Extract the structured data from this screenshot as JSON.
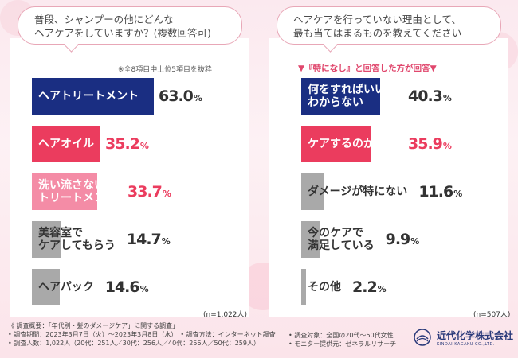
{
  "left": {
    "question": [
      "普段、シャンプーの他にどんな",
      "ヘアケアをしていますか？(複数回答可)"
    ],
    "note": "※全8項目中上位5項目を抜粋",
    "n_label": "(n=1,022人)"
  },
  "right": {
    "question": [
      "ヘアケアを行っていない理由として、",
      "最も当てはまるものを教えてください"
    ],
    "note": "▼『特になし』と回答した方が回答▼",
    "n_label": "(n=507人)"
  },
  "colors": {
    "navy": "#1a2e82",
    "red": "#eb3c5e",
    "pink": "#f48ca6",
    "gray": "#a9a9a9"
  },
  "chart_data": [
    {
      "type": "bar",
      "title": "普段、シャンプーの他にどんなヘアケアをしていますか？(複数回答可)",
      "categories": [
        "ヘアトリートメント",
        "ヘアオイル",
        "洗い流さないトリートメント",
        "美容室でケアしてもらう",
        "ヘアパック"
      ],
      "label_lines": [
        [
          "ヘアトリートメント"
        ],
        [
          "ヘアオイル"
        ],
        [
          "洗い流さない",
          "トリートメント"
        ],
        [
          "美容室で",
          "ケアしてもらう"
        ],
        [
          "ヘアパック"
        ]
      ],
      "values": [
        63.0,
        35.2,
        33.7,
        14.7,
        14.6
      ],
      "value_labels": [
        "63.0",
        "35.2",
        "33.7",
        "14.7",
        "14.6"
      ],
      "unit": "%",
      "bar_colors": [
        "#1a2e82",
        "#eb3c5e",
        "#f48ca6",
        "#a9a9a9",
        "#a9a9a9"
      ],
      "label_colors": [
        "#ffffff",
        "#ffffff",
        "#ffffff",
        "#333333",
        "#333333"
      ],
      "pct_colors": [
        "#333333",
        "#eb3c5e",
        "#eb3c5e",
        "#333333",
        "#333333"
      ],
      "xlim": [
        0,
        100
      ]
    },
    {
      "type": "bar",
      "title": "ヘアケアを行っていない理由として、最も当てはまるものを教えてください",
      "categories": [
        "何をすればいいかわからない",
        "ケアするのが面倒",
        "ダメージが特にない",
        "今のケアで満足している",
        "その他"
      ],
      "label_lines": [
        [
          "何をすればいいか",
          "わからない"
        ],
        [
          "ケアするのが面倒"
        ],
        [
          "ダメージが特にない"
        ],
        [
          "今のケアで",
          "満足している"
        ],
        [
          "その他"
        ]
      ],
      "values": [
        40.3,
        35.9,
        11.6,
        9.9,
        2.2
      ],
      "value_labels": [
        "40.3",
        "35.9",
        "11.6",
        "9.9",
        "2.2"
      ],
      "unit": "%",
      "bar_colors": [
        "#1a2e82",
        "#eb3c5e",
        "#a9a9a9",
        "#a9a9a9",
        "#a9a9a9"
      ],
      "label_colors": [
        "#ffffff",
        "#ffffff",
        "#333333",
        "#333333",
        "#333333"
      ],
      "pct_colors": [
        "#333333",
        "#eb3c5e",
        "#333333",
        "#333333",
        "#333333"
      ],
      "xlim": [
        0,
        100
      ]
    }
  ],
  "footer": {
    "col1": [
      "《 調査概要：「年代別・髪のダメージケア」に関する調査」",
      "• 調査期間：2023年3月7日（火）～2023年3月8日（水）　• 調査方法：インターネット調査",
      "• 調査人数：1,022人（20代：251人／30代：256人／40代：256人／50代：259人）"
    ],
    "col2": [
      "• 調査対象：全国の20代～50代女性",
      "• モニター提供元：ゼネラルリサーチ"
    ],
    "logo_name": "近代化学株式会社",
    "logo_sub": "KINDAI KAGAKU CO.,LTD."
  }
}
